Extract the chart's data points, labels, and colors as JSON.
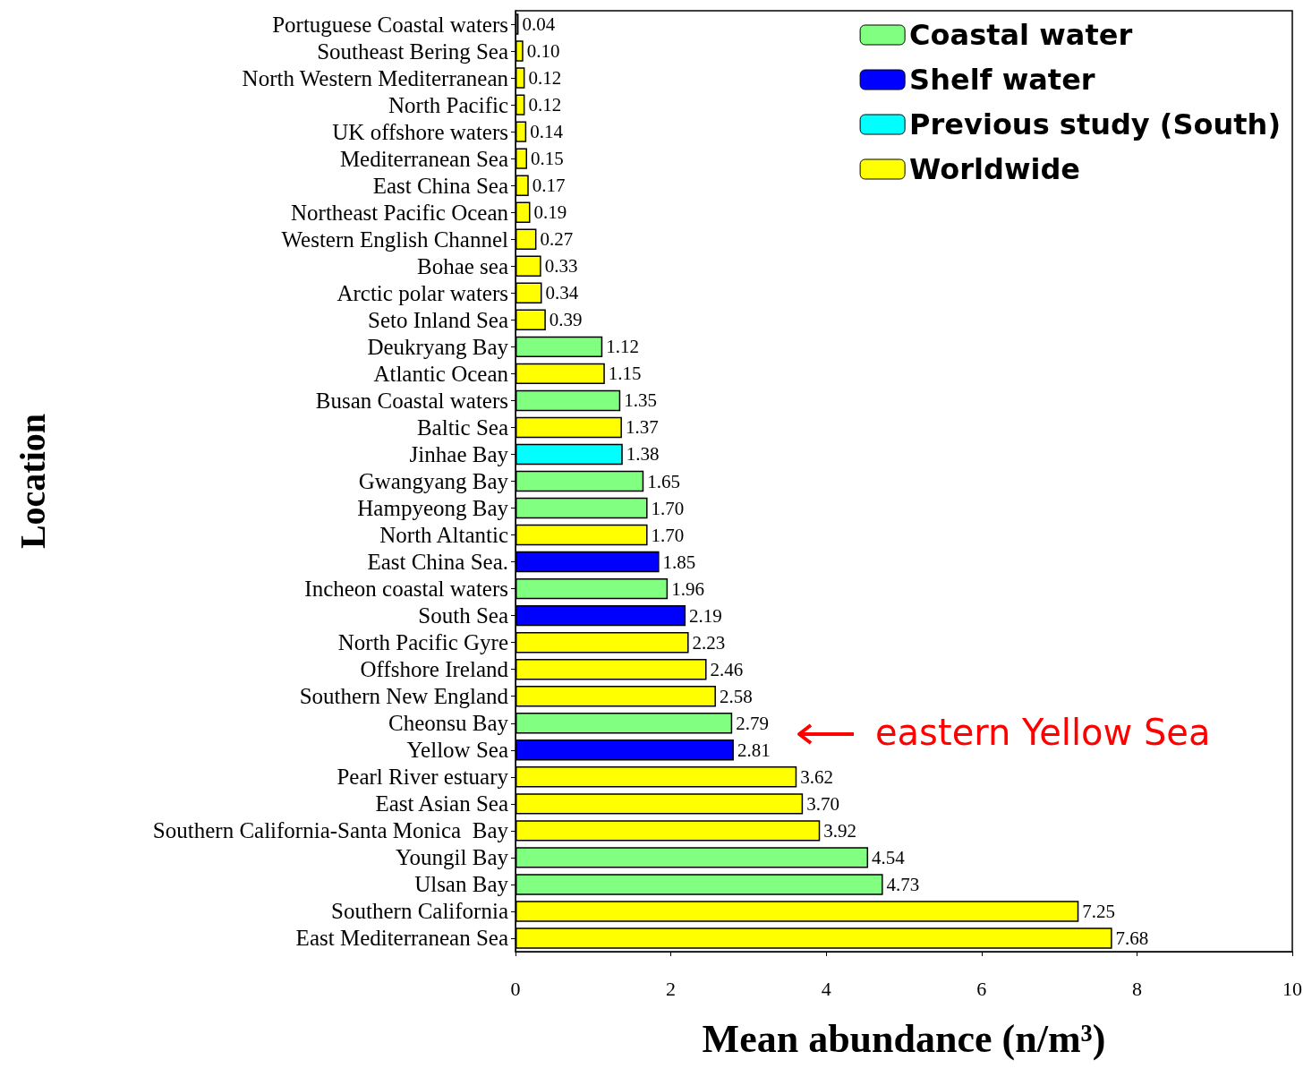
{
  "chart_data": {
    "type": "bar",
    "orientation": "horizontal",
    "xlabel": "Mean abundance (n/m³)",
    "ylabel": "Location",
    "categories": [
      "Portuguese Coastal waters",
      "Southeast Bering Sea",
      "North Western Mediterranean",
      "North Pacific",
      "UK offshore waters",
      "Mediterranean Sea",
      "East China Sea",
      "Northeast Pacific Ocean",
      "Western English Channel",
      "Bohae sea",
      "Arctic polar waters",
      "Seto Inland Sea",
      "Deukryang Bay",
      "Atlantic Ocean",
      "Busan Coastal waters",
      "Baltic Sea",
      "Jinhae Bay",
      "Gwangyang Bay",
      "Hampyeong Bay",
      "North Altantic",
      "East China Sea.",
      "Incheon coastal waters",
      "South Sea",
      "North Pacific Gyre",
      "Offshore Ireland",
      "Southern New England",
      "Cheonsu Bay",
      "Yellow Sea",
      "Pearl River estuary",
      "East Asian Sea",
      "Southern California-Santa Monica  Bay",
      "Youngil Bay",
      "Ulsan Bay",
      "Southern California",
      "East Mediterranean Sea"
    ],
    "series": [
      {
        "name": "Coastal water",
        "color": "#80ff80",
        "values": [
          null,
          null,
          null,
          null,
          null,
          null,
          null,
          null,
          null,
          null,
          null,
          null,
          1.12,
          null,
          1.35,
          null,
          null,
          1.65,
          1.7,
          null,
          null,
          1.96,
          null,
          null,
          null,
          null,
          2.79,
          null,
          null,
          null,
          null,
          4.54,
          4.73,
          null,
          null
        ],
        "value_labels": [
          null,
          null,
          null,
          null,
          null,
          null,
          null,
          null,
          null,
          null,
          null,
          null,
          "1.12",
          null,
          "1.35",
          null,
          null,
          "1.65",
          "1.70",
          null,
          null,
          "1.96",
          null,
          null,
          null,
          null,
          "2.79",
          null,
          null,
          null,
          null,
          "4.54",
          "4.73",
          null,
          null
        ]
      },
      {
        "name": "Shelf water",
        "color": "#0000ff",
        "values": [
          null,
          null,
          null,
          null,
          null,
          null,
          null,
          null,
          null,
          null,
          null,
          null,
          null,
          null,
          null,
          null,
          null,
          null,
          null,
          null,
          1.85,
          null,
          2.19,
          null,
          null,
          null,
          null,
          2.81,
          null,
          null,
          null,
          null,
          null,
          null,
          null
        ],
        "value_labels": [
          null,
          null,
          null,
          null,
          null,
          null,
          null,
          null,
          null,
          null,
          null,
          null,
          null,
          null,
          null,
          null,
          null,
          null,
          null,
          null,
          "1.85",
          null,
          "2.19",
          null,
          null,
          null,
          null,
          "2.81",
          null,
          null,
          null,
          null,
          null,
          null,
          null
        ]
      },
      {
        "name": "Previous study (South)",
        "color": "#00ffff",
        "values": [
          null,
          null,
          null,
          null,
          null,
          null,
          null,
          null,
          null,
          null,
          null,
          null,
          null,
          null,
          null,
          null,
          1.38,
          null,
          null,
          null,
          null,
          null,
          null,
          null,
          null,
          null,
          null,
          null,
          null,
          null,
          null,
          null,
          null,
          null,
          null
        ],
        "value_labels": [
          null,
          null,
          null,
          null,
          null,
          null,
          null,
          null,
          null,
          null,
          null,
          null,
          null,
          null,
          null,
          null,
          "1.38",
          null,
          null,
          null,
          null,
          null,
          null,
          null,
          null,
          null,
          null,
          null,
          null,
          null,
          null,
          null,
          null,
          null,
          null
        ]
      },
      {
        "name": "Worldwide",
        "color": "#ffff00",
        "values": [
          0.04,
          0.1,
          0.12,
          0.12,
          0.14,
          0.15,
          0.17,
          0.19,
          0.27,
          0.33,
          0.34,
          0.39,
          null,
          1.15,
          null,
          1.37,
          null,
          null,
          null,
          1.7,
          null,
          null,
          null,
          2.23,
          2.46,
          2.58,
          null,
          null,
          3.62,
          3.7,
          3.92,
          null,
          null,
          7.25,
          7.68
        ],
        "value_labels": [
          "0.04",
          "0.10",
          "0.12",
          "0.12",
          "0.14",
          "0.15",
          "0.17",
          "0.19",
          "0.27",
          "0.33",
          "0.34",
          "0.39",
          null,
          "1.15",
          null,
          "1.37",
          null,
          null,
          null,
          "1.70",
          null,
          null,
          null,
          "2.23",
          "2.46",
          "2.58",
          null,
          null,
          "3.62",
          "3.70",
          "3.92",
          null,
          null,
          "7.25",
          "7.68"
        ]
      }
    ],
    "xlim": [
      0,
      10
    ],
    "xticks": [
      0,
      2,
      4,
      6,
      8,
      10
    ],
    "legend": "top right",
    "annotations": [
      "eastern Yellow Sea"
    ]
  }
}
